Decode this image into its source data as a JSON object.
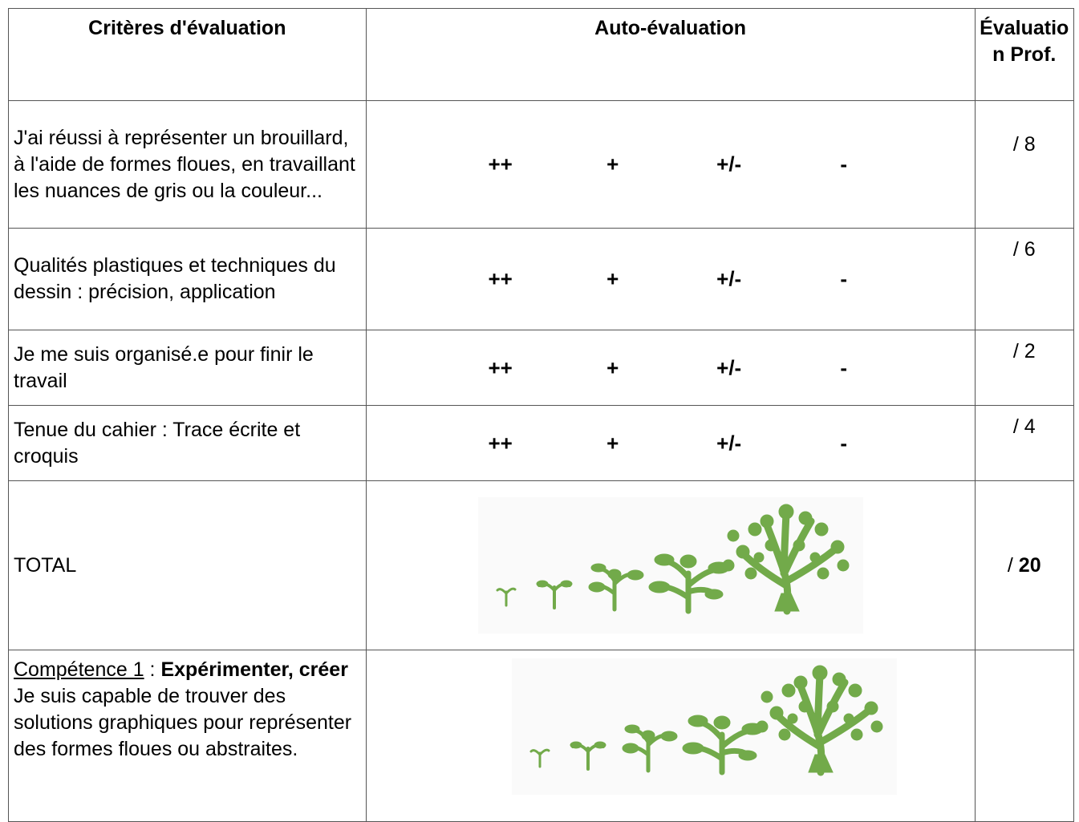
{
  "table": {
    "header": [
      "Critères d'évaluation",
      "Auto-évaluation",
      "Évaluation Prof."
    ],
    "scale": [
      "++",
      "+",
      "+/-",
      "-"
    ],
    "rows": [
      {
        "criterion": "J'ai réussi à représenter un brouillard, à l'aide de formes floues, en travaillant les nuances de gris ou la couleur...",
        "score": "/ 8"
      },
      {
        "criterion": "Qualités plastiques et techniques du dessin : précision, application",
        "score": "/ 6"
      },
      {
        "criterion": "Je me suis organisé.e pour finir le travail",
        "score": "/ 2"
      },
      {
        "criterion": "Tenue du cahier : Trace écrite et croquis",
        "score": "/ 4"
      }
    ],
    "total": {
      "label": "TOTAL",
      "score_prefix": "/",
      "score": "20"
    },
    "competence": {
      "name": "Compétence 1",
      "separator": " : ",
      "title": "Expérimenter, créer",
      "description": "Je suis capable de trouver des solutions graphiques pour représenter des formes floues ou abstraites."
    }
  }
}
